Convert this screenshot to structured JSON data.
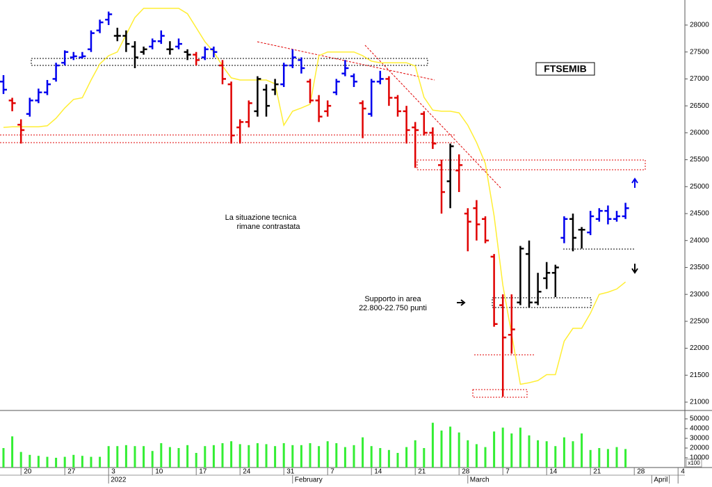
{
  "chart_data": [
    {
      "type": "ohlc",
      "title": "FTSEMIB",
      "annotations": [
        "La situazione tecnica",
        "rimane contrastata",
        "Supporto in area",
        "22.800-22.750 punti"
      ],
      "categories": [
        null,
        null,
        "20",
        null,
        null,
        null,
        null,
        "27",
        null,
        null,
        null,
        null,
        "3",
        null,
        null,
        null,
        null,
        "10",
        null,
        null,
        null,
        null,
        "17",
        null,
        null,
        null,
        null,
        "24",
        null,
        null,
        null,
        null,
        "31",
        null,
        null,
        null,
        null,
        "7",
        null,
        null,
        null,
        null,
        "14",
        null,
        null,
        null,
        null,
        "21",
        null,
        null,
        null,
        null,
        "28",
        null,
        null,
        null,
        null,
        "7",
        null,
        null,
        null,
        null,
        "14",
        null,
        null,
        null,
        null,
        "21",
        null,
        null,
        null,
        null,
        "28",
        null,
        null,
        null,
        null,
        "4"
      ],
      "category_groups": [
        null,
        null,
        null,
        null,
        null,
        null,
        null,
        null,
        null,
        null,
        null,
        null,
        "2022",
        null,
        null,
        null,
        null,
        null,
        null,
        null,
        null,
        null,
        null,
        null,
        null,
        null,
        null,
        null,
        null,
        null,
        null,
        null,
        null,
        "February",
        null,
        null,
        null,
        null,
        null,
        null,
        null,
        null,
        null,
        null,
        null,
        null,
        null,
        null,
        null,
        null,
        null,
        null,
        null,
        "March",
        null,
        null,
        null,
        null,
        null,
        null,
        null,
        null,
        null,
        null,
        null,
        null,
        null,
        null,
        null,
        null,
        null,
        null,
        null,
        null,
        "April",
        null
      ],
      "open": [
        26950,
        26600,
        26150,
        26350,
        26600,
        26750,
        27000,
        27300,
        27400,
        27400,
        27550,
        27900,
        28100,
        27800,
        27800,
        27600,
        27500,
        27600,
        27700,
        27550,
        27600,
        27500,
        27450,
        27400,
        27550,
        27250,
        26900,
        26100,
        26200,
        26400,
        26800,
        26800,
        26900,
        27250,
        27350,
        26950,
        26600,
        26400,
        26750,
        27100,
        27050,
        26550,
        26350,
        26950,
        27000,
        26650,
        26400,
        26100,
        26350,
        26000,
        25400,
        25100,
        25300,
        24500,
        24600,
        24400,
        23700,
        22800,
        22250,
        22850,
        23750,
        22850,
        23300,
        23400,
        24050,
        24400,
        24200,
        24150,
        24400,
        24550,
        24400,
        24450,
        null,
        null,
        null,
        null,
        null,
        null
      ],
      "high": [
        27070,
        26650,
        26250,
        26650,
        26820,
        26980,
        27300,
        27530,
        27500,
        27500,
        27900,
        28100,
        28250,
        27950,
        27900,
        27700,
        27600,
        27750,
        27900,
        27700,
        27750,
        27550,
        27500,
        27600,
        27600,
        27350,
        26950,
        26250,
        26600,
        27050,
        26900,
        27000,
        27300,
        27550,
        27400,
        27000,
        26700,
        26600,
        27000,
        27350,
        27100,
        26600,
        27000,
        27150,
        27050,
        26700,
        26500,
        26200,
        26400,
        26100,
        25500,
        25800,
        25600,
        24600,
        24750,
        24450,
        23750,
        23000,
        23000,
        23900,
        24000,
        23400,
        23600,
        23550,
        24450,
        24500,
        24250,
        24550,
        24600,
        24650,
        24550,
        24700,
        null,
        null,
        null,
        null,
        null,
        null
      ],
      "low": [
        26720,
        26400,
        25800,
        26300,
        26550,
        26700,
        26950,
        27250,
        27350,
        27380,
        27500,
        27850,
        28000,
        27700,
        27500,
        27200,
        27450,
        27550,
        27650,
        27450,
        27550,
        27350,
        27250,
        27350,
        27400,
        26900,
        25800,
        25800,
        26100,
        26300,
        26300,
        26700,
        26850,
        27200,
        27100,
        26550,
        26200,
        26300,
        26700,
        27050,
        26850,
        25900,
        26300,
        26900,
        26500,
        26300,
        25800,
        25350,
        25950,
        25700,
        24500,
        24600,
        24900,
        23800,
        24000,
        23950,
        22400,
        21100,
        21900,
        22800,
        22750,
        22800,
        23100,
        22950,
        23950,
        23800,
        23850,
        24100,
        24350,
        24300,
        24350,
        24400,
        null,
        null,
        null,
        null,
        null,
        null
      ],
      "close": [
        26800,
        26550,
        26050,
        26600,
        26750,
        26900,
        27250,
        27500,
        27420,
        27420,
        27850,
        28050,
        28200,
        27800,
        27650,
        27400,
        27550,
        27700,
        27800,
        27550,
        27650,
        27450,
        27350,
        27550,
        27500,
        27000,
        25950,
        26200,
        26550,
        27000,
        26500,
        26900,
        27250,
        27400,
        27200,
        26600,
        26300,
        26500,
        26950,
        27200,
        26950,
        26450,
        26950,
        27000,
        26650,
        26400,
        26050,
        26050,
        26000,
        25800,
        24900,
        25750,
        25400,
        24350,
        24300,
        24000,
        22450,
        22200,
        22350,
        23850,
        22850,
        23050,
        23400,
        23500,
        24400,
        24050,
        24200,
        24450,
        24550,
        24400,
        24450,
        24600,
        null,
        null,
        null,
        null,
        null,
        null
      ],
      "bar_colors": [
        "#0000ee",
        "#e00000",
        "#e00000",
        "#0000ee",
        "#0000ee",
        "#0000ee",
        "#0000ee",
        "#0000ee",
        "#0000ee",
        "#0000ee",
        "#0000ee",
        "#0000ee",
        "#0000ee",
        "#000000",
        "#000000",
        "#000000",
        "#000000",
        "#0000ee",
        "#0000ee",
        "#000000",
        "#0000ee",
        "#000000",
        "#e00000",
        "#0000ee",
        "#0000ee",
        "#e00000",
        "#e00000",
        "#e00000",
        "#e00000",
        "#000000",
        "#000000",
        "#000000",
        "#0000ee",
        "#0000ee",
        "#0000ee",
        "#e00000",
        "#e00000",
        "#e00000",
        "#0000ee",
        "#0000ee",
        "#0000ee",
        "#e00000",
        "#0000ee",
        "#0000ee",
        "#e00000",
        "#e00000",
        "#e00000",
        "#e00000",
        "#e00000",
        "#e00000",
        "#e00000",
        "#000000",
        "#e00000",
        "#e00000",
        "#e00000",
        "#e00000",
        "#e00000",
        "#e00000",
        "#e00000",
        "#000000",
        "#000000",
        "#000000",
        "#000000",
        "#000000",
        "#0000ee",
        "#000000",
        "#000000",
        "#0000ee",
        "#0000ee",
        "#0000ee",
        "#0000ee",
        "#0000ee",
        null,
        null,
        null,
        null,
        null,
        null
      ],
      "envelope": {
        "color": "#ffee33",
        "values": [
          26100,
          26110,
          26110,
          26110,
          26110,
          26130,
          26270,
          26460,
          26620,
          26650,
          26980,
          27280,
          27430,
          27500,
          27820,
          28140,
          28310,
          28310,
          28310,
          28310,
          28310,
          28210,
          27950,
          27690,
          27500,
          27240,
          27020,
          26980,
          26980,
          26980,
          26980,
          26910,
          26140,
          26400,
          26460,
          26530,
          27430,
          27500,
          27500,
          27500,
          27500,
          27430,
          27330,
          27300,
          27300,
          27300,
          27300,
          27240,
          26660,
          26420,
          26400,
          26400,
          26370,
          26140,
          25820,
          25430,
          24460,
          23170,
          22260,
          21330,
          21360,
          21400,
          21510,
          21510,
          22130,
          22370,
          22370,
          22650,
          23000,
          23040,
          23100,
          23230,
          null,
          null,
          null,
          null,
          null,
          null
        ]
      },
      "ylim": [
        20845,
        28465
      ],
      "yticks": [
        21000,
        21500,
        22000,
        22500,
        23000,
        23500,
        24000,
        24500,
        25000,
        25500,
        26000,
        26500,
        27000,
        27500,
        28000
      ]
    },
    {
      "type": "volume",
      "unit_label": "x100",
      "color": "#33ee33",
      "values": [
        20000,
        32000,
        16000,
        13000,
        12000,
        11000,
        10000,
        11000,
        13000,
        12000,
        11000,
        11000,
        22000,
        22000,
        23000,
        22000,
        22000,
        17000,
        25000,
        21000,
        20000,
        23000,
        15000,
        22000,
        23000,
        25000,
        27000,
        24000,
        23000,
        25000,
        24000,
        22000,
        25000,
        23000,
        23000,
        25000,
        22000,
        27000,
        25000,
        21000,
        23000,
        31000,
        22000,
        20000,
        18000,
        15000,
        21000,
        28000,
        20000,
        46000,
        38000,
        42000,
        36000,
        28000,
        24000,
        21000,
        37000,
        41000,
        35000,
        41000,
        33000,
        28000,
        27000,
        22000,
        31000,
        27000,
        35000,
        18000,
        20000,
        19000,
        21000,
        19000,
        null,
        null,
        null,
        null,
        null,
        null
      ],
      "ylim": [
        0,
        58600
      ],
      "yticks": [
        10000,
        20000,
        30000,
        40000,
        50000
      ]
    }
  ]
}
